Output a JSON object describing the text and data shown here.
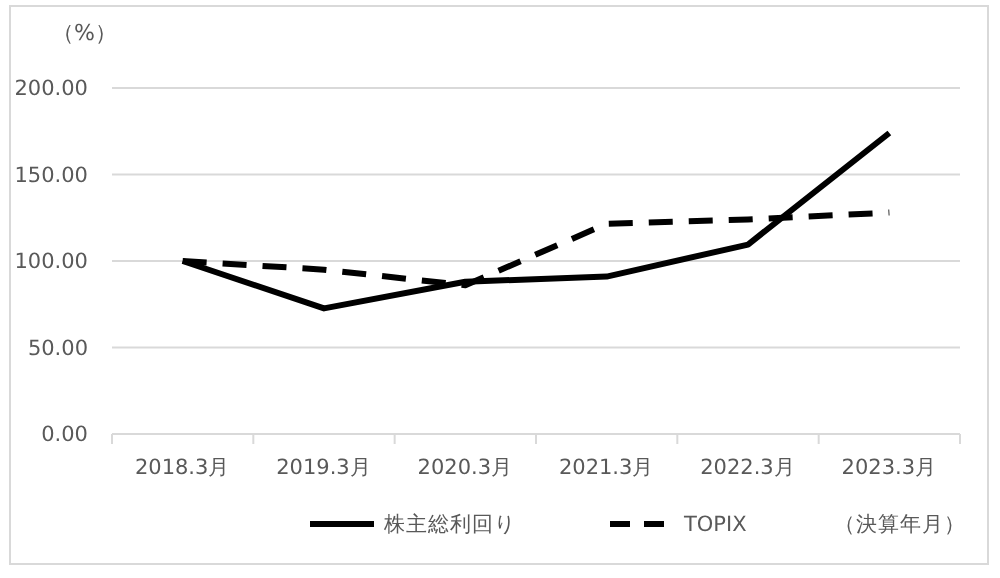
{
  "chart_data": {
    "type": "line",
    "ylabel": "（%）",
    "xlabel": "（決算年月）",
    "categories": [
      "2018.3月",
      "2019.3月",
      "2020.3月",
      "2021.3月",
      "2022.3月",
      "2023.3月"
    ],
    "series": [
      {
        "name": "株主総利回り",
        "color": "#000000",
        "values": [
          100,
          72.6,
          88,
          91,
          109.5,
          174
        ],
        "line_style": "solid"
      },
      {
        "name": "TOPIX",
        "color": "#000000",
        "values": [
          100,
          95,
          86,
          121.5,
          124,
          128
        ],
        "line_style": "dashed"
      }
    ],
    "ylim": [
      0,
      200
    ],
    "yticks": [
      {
        "value": 0,
        "label": "0.00"
      },
      {
        "value": 50,
        "label": "50.00"
      },
      {
        "value": 100,
        "label": "100.00"
      },
      {
        "value": 150,
        "label": "150.00"
      },
      {
        "value": 200,
        "label": "200.00"
      }
    ],
    "grid": "y",
    "legend": "bottom",
    "marker": "none"
  }
}
